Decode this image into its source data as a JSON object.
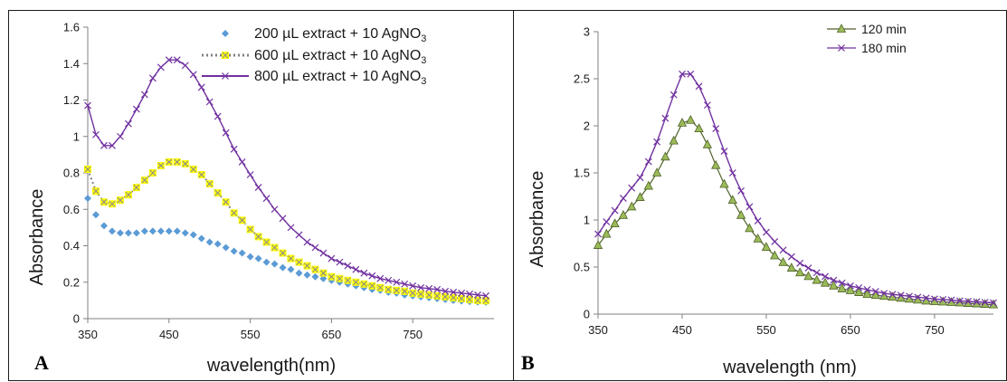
{
  "chart_data": [
    {
      "type": "scatter",
      "panel_label": "A",
      "xlabel": "wavelength(nm)",
      "ylabel": "Absorbance",
      "xlim": [
        350,
        850
      ],
      "ylim": [
        0,
        1.6
      ],
      "x_ticks": [
        350,
        450,
        550,
        650,
        750
      ],
      "y_ticks": [
        0,
        0.2,
        0.4,
        0.6,
        0.8,
        1,
        1.2,
        1.4,
        1.6
      ],
      "y_tick_labels": [
        "0",
        "0.2",
        "0.4",
        "0.6",
        "0.8",
        "1",
        "1.2",
        "1.4",
        "1.6"
      ],
      "grid": false,
      "legend_position": "top-right",
      "series": [
        {
          "name": "200 µL extract + 10 AgNO3",
          "legend_main": "200 µL extract + 10 AgNO",
          "legend_sub": "3",
          "color": "#5b9bd5",
          "marker": "diamond",
          "x": [
            350,
            360,
            370,
            380,
            390,
            400,
            410,
            420,
            430,
            440,
            450,
            460,
            470,
            480,
            490,
            500,
            510,
            520,
            530,
            540,
            550,
            560,
            570,
            580,
            590,
            600,
            610,
            620,
            630,
            640,
            650,
            660,
            670,
            680,
            690,
            700,
            710,
            720,
            730,
            740,
            750,
            760,
            770,
            780,
            790,
            800,
            810,
            820,
            830,
            840
          ],
          "y": [
            0.66,
            0.57,
            0.51,
            0.48,
            0.47,
            0.47,
            0.47,
            0.48,
            0.48,
            0.48,
            0.48,
            0.48,
            0.47,
            0.46,
            0.44,
            0.42,
            0.41,
            0.39,
            0.37,
            0.36,
            0.34,
            0.33,
            0.31,
            0.3,
            0.28,
            0.27,
            0.25,
            0.24,
            0.23,
            0.22,
            0.21,
            0.2,
            0.19,
            0.18,
            0.17,
            0.16,
            0.155,
            0.145,
            0.14,
            0.13,
            0.125,
            0.12,
            0.115,
            0.11,
            0.105,
            0.1,
            0.097,
            0.094,
            0.091,
            0.09
          ]
        },
        {
          "name": "600 µL extract + 10 AgNO3",
          "legend_main": "600 µL extract + 10 AgNO",
          "legend_sub": "3",
          "color": "#ffff00",
          "line_color": "#808080",
          "marker": "x-box",
          "x": [
            350,
            360,
            370,
            380,
            390,
            400,
            410,
            420,
            430,
            440,
            450,
            460,
            470,
            480,
            490,
            500,
            510,
            520,
            530,
            540,
            550,
            560,
            570,
            580,
            590,
            600,
            610,
            620,
            630,
            640,
            650,
            660,
            670,
            680,
            690,
            700,
            710,
            720,
            730,
            740,
            750,
            760,
            770,
            780,
            790,
            800,
            810,
            820,
            830,
            840
          ],
          "y": [
            0.82,
            0.7,
            0.64,
            0.63,
            0.65,
            0.68,
            0.72,
            0.76,
            0.8,
            0.84,
            0.86,
            0.86,
            0.85,
            0.82,
            0.79,
            0.74,
            0.69,
            0.64,
            0.58,
            0.54,
            0.49,
            0.45,
            0.42,
            0.39,
            0.36,
            0.33,
            0.31,
            0.29,
            0.27,
            0.25,
            0.23,
            0.22,
            0.21,
            0.2,
            0.19,
            0.18,
            0.17,
            0.16,
            0.155,
            0.15,
            0.14,
            0.135,
            0.13,
            0.125,
            0.12,
            0.115,
            0.11,
            0.105,
            0.1,
            0.098
          ]
        },
        {
          "name": "800 µL extract + 10 AgNO3",
          "legend_main": "800 µL extract + 10 AgNO",
          "legend_sub": "3",
          "color": "#7030a0",
          "marker": "x",
          "x": [
            350,
            360,
            370,
            380,
            390,
            400,
            410,
            420,
            430,
            440,
            450,
            460,
            470,
            480,
            490,
            500,
            510,
            520,
            530,
            540,
            550,
            560,
            570,
            580,
            590,
            600,
            610,
            620,
            630,
            640,
            650,
            660,
            670,
            680,
            690,
            700,
            710,
            720,
            730,
            740,
            750,
            760,
            770,
            780,
            790,
            800,
            810,
            820,
            830,
            840
          ],
          "y": [
            1.17,
            1.01,
            0.95,
            0.95,
            1.0,
            1.07,
            1.15,
            1.23,
            1.32,
            1.38,
            1.42,
            1.42,
            1.39,
            1.34,
            1.27,
            1.19,
            1.11,
            1.02,
            0.93,
            0.86,
            0.79,
            0.72,
            0.66,
            0.6,
            0.55,
            0.5,
            0.46,
            0.42,
            0.39,
            0.36,
            0.33,
            0.31,
            0.29,
            0.27,
            0.25,
            0.235,
            0.22,
            0.21,
            0.2,
            0.19,
            0.18,
            0.17,
            0.165,
            0.16,
            0.15,
            0.145,
            0.14,
            0.135,
            0.13,
            0.125
          ]
        }
      ]
    },
    {
      "type": "line",
      "panel_label": "B",
      "xlabel": "wavelength (nm)",
      "ylabel": "Absorbance",
      "xlim": [
        350,
        820
      ],
      "ylim": [
        0,
        3
      ],
      "x_ticks": [
        350,
        450,
        550,
        650,
        750
      ],
      "y_ticks": [
        0,
        0.5,
        1,
        1.5,
        2,
        2.5,
        3
      ],
      "y_tick_labels": [
        "0",
        "0.5",
        "1",
        "1.5",
        "2",
        "2.5",
        "3"
      ],
      "grid": false,
      "legend_position": "top-right",
      "series": [
        {
          "name": "120 min",
          "color": "#9bbb59",
          "line_color": "#4f6228",
          "marker": "triangle",
          "x": [
            350,
            360,
            370,
            380,
            390,
            400,
            410,
            420,
            430,
            440,
            450,
            460,
            470,
            480,
            490,
            500,
            510,
            520,
            530,
            540,
            550,
            560,
            570,
            580,
            590,
            600,
            610,
            620,
            630,
            640,
            650,
            660,
            670,
            680,
            690,
            700,
            710,
            720,
            730,
            740,
            750,
            760,
            770,
            780,
            790,
            800,
            810,
            820
          ],
          "y": [
            0.73,
            0.85,
            0.96,
            1.05,
            1.14,
            1.24,
            1.36,
            1.5,
            1.67,
            1.84,
            2.03,
            2.06,
            1.97,
            1.8,
            1.58,
            1.38,
            1.21,
            1.05,
            0.91,
            0.8,
            0.71,
            0.62,
            0.55,
            0.49,
            0.44,
            0.4,
            0.36,
            0.33,
            0.3,
            0.27,
            0.25,
            0.23,
            0.21,
            0.2,
            0.19,
            0.18,
            0.17,
            0.16,
            0.15,
            0.14,
            0.135,
            0.13,
            0.125,
            0.12,
            0.115,
            0.11,
            0.105,
            0.1
          ]
        },
        {
          "name": "180 min",
          "color": "#7030a0",
          "marker": "x",
          "x": [
            350,
            360,
            370,
            380,
            390,
            400,
            410,
            420,
            430,
            440,
            450,
            460,
            470,
            480,
            490,
            500,
            510,
            520,
            530,
            540,
            550,
            560,
            570,
            580,
            590,
            600,
            610,
            620,
            630,
            640,
            650,
            660,
            670,
            680,
            690,
            700,
            710,
            720,
            730,
            740,
            750,
            760,
            770,
            780,
            790,
            800,
            810,
            820
          ],
          "y": [
            0.85,
            0.98,
            1.1,
            1.23,
            1.34,
            1.45,
            1.62,
            1.83,
            2.08,
            2.33,
            2.55,
            2.55,
            2.42,
            2.22,
            1.97,
            1.73,
            1.5,
            1.31,
            1.14,
            0.99,
            0.87,
            0.77,
            0.68,
            0.61,
            0.54,
            0.49,
            0.44,
            0.4,
            0.36,
            0.33,
            0.3,
            0.28,
            0.26,
            0.24,
            0.22,
            0.21,
            0.2,
            0.19,
            0.18,
            0.17,
            0.16,
            0.155,
            0.15,
            0.14,
            0.135,
            0.13,
            0.125,
            0.12
          ]
        }
      ]
    }
  ]
}
